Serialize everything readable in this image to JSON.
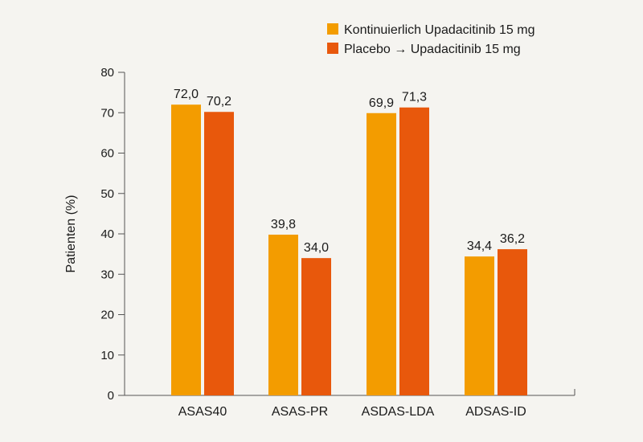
{
  "chart_data": {
    "type": "bar",
    "title": "",
    "xlabel": "",
    "ylabel": "Patienten (%)",
    "ylim": [
      0,
      80
    ],
    "yticks": [
      "0",
      "10",
      "20",
      "30",
      "40",
      "50",
      "60",
      "70",
      "80"
    ],
    "ytick_values": [
      0,
      10,
      20,
      30,
      40,
      50,
      60,
      70,
      80
    ],
    "categories": [
      "ASAS40",
      "ASAS-PR",
      "ASDAS-LDA",
      "ADSAS-ID"
    ],
    "grid": false,
    "legend_position": "top-right",
    "series": [
      {
        "name": "Kontinuierlich Upadacitinib 15 mg",
        "color": "#f39c00",
        "values": [
          72.0,
          39.8,
          69.9,
          34.4
        ],
        "labels": [
          "72,0",
          "39,8",
          "69,9",
          "34,4"
        ]
      },
      {
        "name": "Placebo → Upadacitinib 15 mg",
        "color": "#e8580c",
        "values": [
          70.2,
          34.0,
          71.3,
          36.2
        ],
        "labels": [
          "70,2",
          "34,0",
          "71,3",
          "36,2"
        ]
      }
    ]
  }
}
